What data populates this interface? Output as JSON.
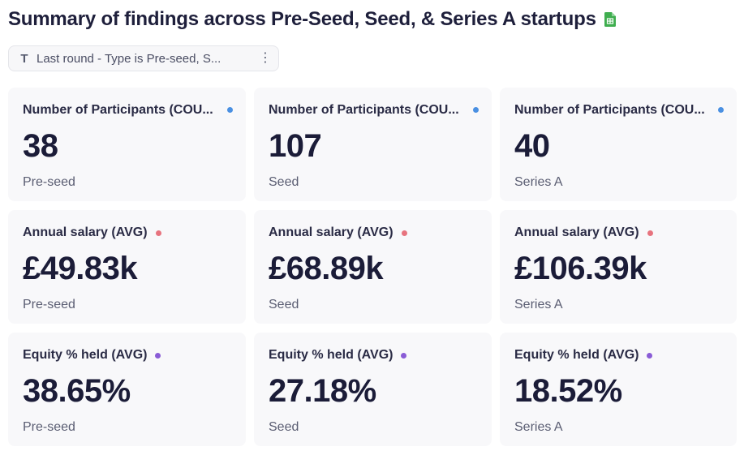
{
  "header": {
    "title": "Summary of findings across Pre-Seed, Seed, & Series A startups"
  },
  "filter": {
    "icon": "text-type-icon",
    "text": "Last round - Type is Pre-seed, S...",
    "menu_icon": "more-vertical-icon"
  },
  "colors": {
    "participants_dot": "#4a90e2",
    "salary_dot": "#e7737e",
    "equity_dot": "#8a5cd6",
    "sheet_icon": "#3fae4f"
  },
  "cards": [
    {
      "label": "Number of Participants (COU...",
      "value": "38",
      "sub": "Pre-seed"
    },
    {
      "label": "Number of Participants (COU...",
      "value": "107",
      "sub": "Seed"
    },
    {
      "label": "Number of Participants (COU...",
      "value": "40",
      "sub": "Series A"
    },
    {
      "label": "Annual salary (AVG)",
      "value": "£49.83k",
      "sub": "Pre-seed"
    },
    {
      "label": "Annual salary (AVG)",
      "value": "£68.89k",
      "sub": "Seed"
    },
    {
      "label": "Annual salary (AVG)",
      "value": "£106.39k",
      "sub": "Series A"
    },
    {
      "label": "Equity % held (AVG)",
      "value": "38.65%",
      "sub": "Pre-seed"
    },
    {
      "label": "Equity % held (AVG)",
      "value": "27.18%",
      "sub": "Seed"
    },
    {
      "label": "Equity % held (AVG)",
      "value": "18.52%",
      "sub": "Series A"
    }
  ]
}
